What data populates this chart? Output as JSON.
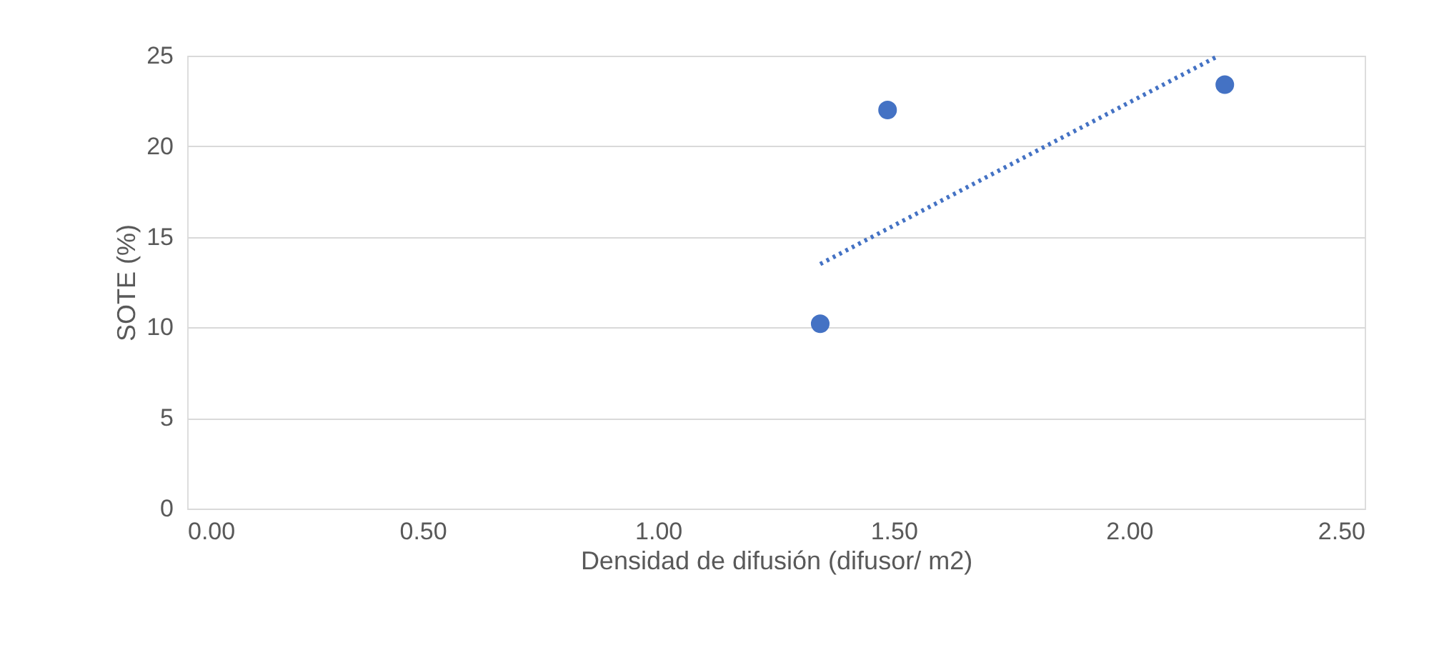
{
  "chart_data": {
    "type": "scatter",
    "xlabel": "Densidad de difusión (difusor/ m2)",
    "ylabel": "SOTE (%)",
    "xlim": [
      0,
      2.5
    ],
    "xticks": [
      {
        "value": 0,
        "label": "0.00"
      },
      {
        "value": 0.5,
        "label": "0.50"
      },
      {
        "value": 1,
        "label": "1.00"
      },
      {
        "value": 1.5,
        "label": "1.50"
      },
      {
        "value": 2,
        "label": "2.00"
      },
      {
        "value": 2.5,
        "label": "2.50"
      }
    ],
    "ylim": [
      0,
      25
    ],
    "yticks": [
      0,
      5,
      10,
      15,
      20,
      25
    ],
    "grid": "y",
    "series": [
      {
        "color": "#4472c4",
        "marker": "circle",
        "x": [
          1.344,
          1.487,
          2.203
        ],
        "values": [
          10.2,
          22.0,
          23.4
        ]
      },
      {
        "type": "line",
        "color": "#4472c4",
        "marker": "none",
        "line_style": "dotted",
        "x": [
          1.344,
          2.19
        ],
        "values": [
          13.5,
          25.0
        ]
      }
    ]
  }
}
